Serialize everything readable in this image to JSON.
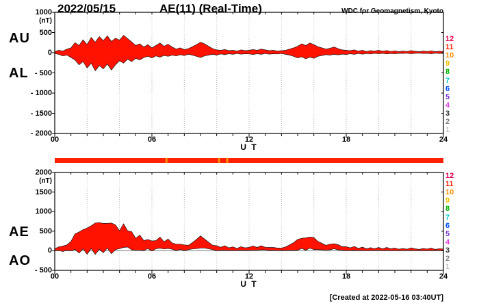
{
  "header": {
    "date": "2022/05/15",
    "title": "AE(11) (Real-Time)",
    "source": "WDC for Geomagnetism, Kyoto"
  },
  "footer": {
    "created_note": "[Created at 2022-05-16 03:40UT]"
  },
  "colors": {
    "trace_fill": "#ff1200",
    "trace_edge": "#1a1a1a",
    "frame": "#000000",
    "grid_dot": "#b8b8b8",
    "zero_line": "#444444",
    "background": "#ffffff"
  },
  "status_bar": {
    "base_color": "#ff2000",
    "marker_color": "#ff9000",
    "marker_hours": [
      6.9,
      10.15,
      10.65
    ]
  },
  "station_count_scale": {
    "values": [
      "12",
      "11",
      "10",
      "9",
      "8",
      "7",
      "6",
      "5",
      "4",
      "3",
      "2",
      "1"
    ],
    "colors": [
      "#e50050",
      "#ff2000",
      "#ff9000",
      "#f0c000",
      "#00b400",
      "#00c8c8",
      "#0050ff",
      "#7030d0",
      "#e040e0",
      "#303030",
      "#808080",
      "#c0c0c0"
    ]
  },
  "panels": {
    "top": {
      "unit_label": "(nT)",
      "left_labels": [
        "AU",
        "AL"
      ],
      "y_tick_labels": [
        "1000",
        "500",
        "0",
        "- 500",
        "- 1000",
        "- 1500",
        "- 2000"
      ],
      "y_tick_values": [
        1000,
        500,
        0,
        -500,
        -1000,
        -1500,
        -2000
      ],
      "x_tick_labels": [
        "00",
        "06",
        "12",
        "18",
        "24"
      ],
      "x_tick_hours": [
        0,
        6,
        12,
        18,
        24
      ],
      "x_axis_label": "U T"
    },
    "bottom": {
      "unit_label": "(nT)",
      "left_labels": [
        "AE",
        "AO"
      ],
      "y_tick_labels": [
        "2000",
        "1500",
        "1000",
        "500",
        "0",
        "- 500"
      ],
      "y_tick_values": [
        2000,
        1500,
        1000,
        500,
        0,
        -500
      ],
      "x_tick_labels": [
        "00",
        "06",
        "12",
        "18",
        "24"
      ],
      "x_tick_hours": [
        0,
        6,
        12,
        18,
        24
      ],
      "x_axis_label": "U T"
    }
  },
  "chart_data": [
    {
      "type": "area",
      "title": "AU / AL auroral electrojet indices, 2022/05/15 (Real-Time)",
      "xlabel": "U T",
      "ylabel": "nT",
      "x_start": 0,
      "x_step": 0.25,
      "x_end": 24,
      "xlim": [
        0,
        24
      ],
      "ylim": [
        -2000,
        1000
      ],
      "fill_between": [
        "AU",
        "AL"
      ],
      "series": [
        {
          "name": "AU",
          "values": [
            30,
            60,
            40,
            90,
            120,
            250,
            180,
            320,
            200,
            380,
            260,
            400,
            300,
            420,
            280,
            360,
            310,
            430,
            350,
            270,
            180,
            220,
            140,
            200,
            120,
            180,
            240,
            160,
            210,
            140,
            90,
            120,
            80,
            100,
            150,
            200,
            260,
            220,
            160,
            100,
            70,
            60,
            80,
            50,
            60,
            40,
            70,
            50,
            60,
            80,
            60,
            90,
            70,
            50,
            60,
            40,
            50,
            60,
            90,
            120,
            160,
            220,
            180,
            240,
            200,
            150,
            120,
            90,
            110,
            140,
            100,
            70,
            60,
            50,
            70,
            40,
            60,
            30,
            50,
            40,
            60,
            35,
            55,
            30,
            45,
            25,
            40,
            30,
            50,
            35,
            25,
            40,
            30,
            45,
            25,
            35,
            30
          ]
        },
        {
          "name": "AL",
          "values": [
            -20,
            -40,
            -80,
            -60,
            -120,
            -180,
            -300,
            -220,
            -380,
            -260,
            -450,
            -320,
            -400,
            -280,
            -430,
            -300,
            -200,
            -260,
            -160,
            -220,
            -140,
            -180,
            -120,
            -90,
            -130,
            -80,
            -110,
            -70,
            -90,
            -60,
            -80,
            -50,
            -70,
            -40,
            -60,
            -90,
            -120,
            -80,
            -60,
            -40,
            -60,
            -30,
            -50,
            -25,
            -40,
            -20,
            -35,
            -25,
            -30,
            -45,
            -25,
            -40,
            -20,
            -35,
            -25,
            -30,
            -20,
            -40,
            -60,
            -90,
            -130,
            -100,
            -150,
            -110,
            -140,
            -90,
            -70,
            -50,
            -60,
            -40,
            -55,
            -35,
            -45,
            -25,
            -40,
            -20,
            -35,
            -20,
            -30,
            -15,
            -25,
            -15,
            -30,
            -20,
            -25,
            -15,
            -20,
            -10,
            -25,
            -15,
            -10,
            -20,
            -15,
            -25,
            -10,
            -20,
            -15
          ]
        }
      ]
    },
    {
      "type": "area",
      "title": "AE / AO auroral electrojet indices, 2022/05/15 (Real-Time)",
      "xlabel": "U T",
      "ylabel": "nT",
      "x_start": 0,
      "x_step": 0.25,
      "x_end": 24,
      "xlim": [
        0,
        24
      ],
      "ylim": [
        -500,
        2000
      ],
      "fill_between": [
        "AE",
        "AO"
      ],
      "series": [
        {
          "name": "AE",
          "values": [
            50,
            100,
            120,
            150,
            240,
            430,
            480,
            540,
            580,
            640,
            710,
            720,
            700,
            700,
            710,
            660,
            510,
            690,
            510,
            490,
            320,
            400,
            260,
            290,
            250,
            260,
            350,
            230,
            300,
            200,
            170,
            170,
            150,
            140,
            210,
            290,
            380,
            300,
            220,
            140,
            130,
            90,
            130,
            75,
            100,
            60,
            105,
            75,
            90,
            125,
            85,
            130,
            90,
            85,
            85,
            70,
            70,
            100,
            150,
            210,
            290,
            320,
            330,
            350,
            340,
            240,
            190,
            140,
            170,
            180,
            155,
            105,
            105,
            75,
            110,
            60,
            95,
            50,
            80,
            55,
            85,
            50,
            85,
            50,
            70,
            40,
            60,
            40,
            75,
            50,
            35,
            60,
            45,
            70,
            35,
            55,
            45
          ]
        },
        {
          "name": "AO",
          "values": [
            5,
            10,
            -20,
            15,
            0,
            35,
            -60,
            50,
            -90,
            60,
            -95,
            40,
            -50,
            70,
            -75,
            30,
            55,
            85,
            95,
            25,
            20,
            20,
            10,
            55,
            -5,
            50,
            65,
            45,
            60,
            40,
            5,
            35,
            5,
            30,
            45,
            55,
            70,
            70,
            50,
            30,
            5,
            15,
            15,
            13,
            10,
            10,
            18,
            13,
            15,
            18,
            18,
            25,
            25,
            8,
            18,
            5,
            15,
            10,
            15,
            15,
            15,
            60,
            15,
            65,
            30,
            30,
            25,
            20,
            25,
            50,
            23,
            18,
            8,
            13,
            15,
            10,
            13,
            5,
            10,
            13,
            18,
            10,
            13,
            5,
            10,
            5,
            10,
            10,
            13,
            10,
            8,
            10,
            8,
            10,
            8,
            8,
            8
          ]
        }
      ]
    }
  ]
}
